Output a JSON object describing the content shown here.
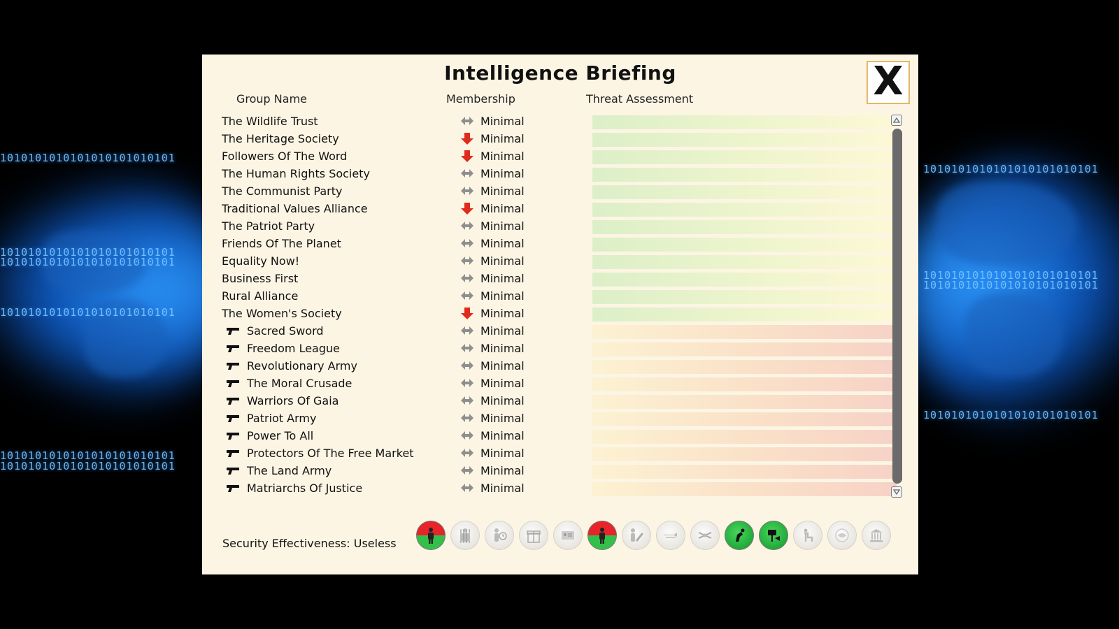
{
  "dialog": {
    "title": "Intelligence Briefing",
    "close_label": "X"
  },
  "columns": {
    "group_name": "Group Name",
    "membership": "Membership",
    "threat": "Threat Assessment"
  },
  "groups": [
    {
      "name": "The Wildlife Trust",
      "armed": false,
      "trend": "steady",
      "membership": "Minimal",
      "threat_level": "low"
    },
    {
      "name": "The Heritage Society",
      "armed": false,
      "trend": "down",
      "membership": "Minimal",
      "threat_level": "low"
    },
    {
      "name": "Followers Of The Word",
      "armed": false,
      "trend": "down",
      "membership": "Minimal",
      "threat_level": "low"
    },
    {
      "name": "The Human Rights Society",
      "armed": false,
      "trend": "steady",
      "membership": "Minimal",
      "threat_level": "low"
    },
    {
      "name": "The Communist Party",
      "armed": false,
      "trend": "steady",
      "membership": "Minimal",
      "threat_level": "low"
    },
    {
      "name": "Traditional Values Alliance",
      "armed": false,
      "trend": "down",
      "membership": "Minimal",
      "threat_level": "low"
    },
    {
      "name": "The Patriot Party",
      "armed": false,
      "trend": "steady",
      "membership": "Minimal",
      "threat_level": "low"
    },
    {
      "name": "Friends Of The Planet",
      "armed": false,
      "trend": "steady",
      "membership": "Minimal",
      "threat_level": "low"
    },
    {
      "name": "Equality Now!",
      "armed": false,
      "trend": "steady",
      "membership": "Minimal",
      "threat_level": "low"
    },
    {
      "name": "Business First",
      "armed": false,
      "trend": "steady",
      "membership": "Minimal",
      "threat_level": "low"
    },
    {
      "name": "Rural Alliance",
      "armed": false,
      "trend": "steady",
      "membership": "Minimal",
      "threat_level": "low"
    },
    {
      "name": "The Women's Society",
      "armed": false,
      "trend": "down",
      "membership": "Minimal",
      "threat_level": "low"
    },
    {
      "name": "Sacred Sword",
      "armed": true,
      "trend": "steady",
      "membership": "Minimal",
      "threat_level": "high"
    },
    {
      "name": "Freedom League",
      "armed": true,
      "trend": "steady",
      "membership": "Minimal",
      "threat_level": "high"
    },
    {
      "name": "Revolutionary Army",
      "armed": true,
      "trend": "steady",
      "membership": "Minimal",
      "threat_level": "high"
    },
    {
      "name": "The Moral Crusade",
      "armed": true,
      "trend": "steady",
      "membership": "Minimal",
      "threat_level": "high"
    },
    {
      "name": "Warriors Of Gaia",
      "armed": true,
      "trend": "steady",
      "membership": "Minimal",
      "threat_level": "high"
    },
    {
      "name": "Patriot Army",
      "armed": true,
      "trend": "steady",
      "membership": "Minimal",
      "threat_level": "high"
    },
    {
      "name": "Power To All",
      "armed": true,
      "trend": "steady",
      "membership": "Minimal",
      "threat_level": "high"
    },
    {
      "name": "Protectors Of The Free Market",
      "armed": true,
      "trend": "steady",
      "membership": "Minimal",
      "threat_level": "high"
    },
    {
      "name": "The Land Army",
      "armed": true,
      "trend": "steady",
      "membership": "Minimal",
      "threat_level": "high"
    },
    {
      "name": "Matriarchs Of Justice",
      "armed": true,
      "trend": "steady",
      "membership": "Minimal",
      "threat_level": "high"
    }
  ],
  "security": {
    "label": "Security Effectiveness: Useless"
  },
  "policies": [
    {
      "icon": "police-officer-icon",
      "state": "red-green"
    },
    {
      "icon": "prison-icon",
      "state": "off"
    },
    {
      "icon": "surveillance-icon",
      "state": "off"
    },
    {
      "icon": "gift-icon",
      "state": "off"
    },
    {
      "icon": "id-card-icon",
      "state": "off"
    },
    {
      "icon": "armed-police-icon",
      "state": "red-green"
    },
    {
      "icon": "phone-tap-icon",
      "state": "off"
    },
    {
      "icon": "border-wall-icon",
      "state": "off"
    },
    {
      "icon": "drone-icon",
      "state": "off"
    },
    {
      "icon": "free-speech-icon",
      "state": "green"
    },
    {
      "icon": "protest-icon",
      "state": "green"
    },
    {
      "icon": "execution-icon",
      "state": "off"
    },
    {
      "icon": "eye-icon",
      "state": "off"
    },
    {
      "icon": "government-building-icon",
      "state": "off"
    }
  ],
  "background": {
    "binary_text": "1010101010101010101010101"
  },
  "colors": {
    "panel_bg": "#fdf5e4",
    "trend_steady": "#8f8f8f",
    "trend_down": "#e02a1c",
    "close_border": "#e6b66a"
  }
}
